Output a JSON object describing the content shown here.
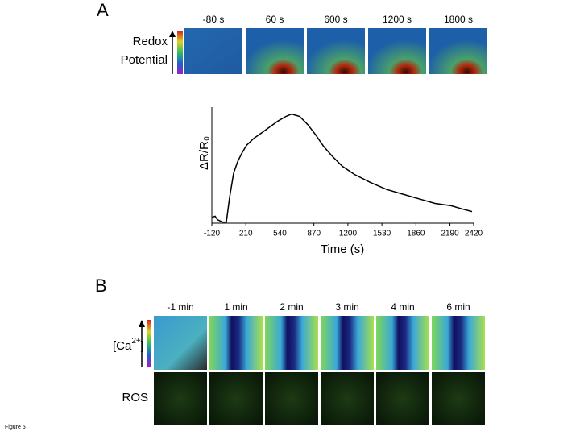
{
  "panel_a": {
    "label": "A",
    "image_times": [
      "-80 s",
      "60 s",
      "600 s",
      "1200 s",
      "1800 s"
    ],
    "colorbar_label": [
      "Redox",
      "Potential"
    ]
  },
  "chart_data": {
    "type": "line",
    "ylabel": "ΔR/R₀",
    "xlabel": "Time (s)",
    "color": "#000000",
    "x": [
      -120,
      -89,
      -65,
      -18,
      21,
      52,
      91,
      130,
      169,
      216,
      286,
      365,
      443,
      521,
      599,
      654,
      732,
      810,
      888,
      966,
      1045,
      1146,
      1263,
      1420,
      1576,
      1732,
      1889,
      2045,
      2201,
      2318,
      2404
    ],
    "values": [
      5,
      6,
      3,
      1,
      1,
      22,
      43,
      53,
      60,
      67,
      73,
      78,
      83,
      88,
      92,
      94,
      92,
      85,
      76,
      66,
      58,
      49,
      42,
      35,
      29,
      25,
      21,
      17,
      15,
      12,
      10
    ],
    "xlim": [
      -120,
      2420
    ],
    "ylim": [
      0,
      100
    ],
    "xticks": [
      -120,
      210,
      540,
      870,
      1200,
      1530,
      1860,
      2190,
      2420
    ]
  },
  "panel_b": {
    "label": "B",
    "image_times": [
      "-1 min",
      "1 min",
      "2 min",
      "3 min",
      "4 min",
      "6 min"
    ],
    "calcium_label": {
      "open": "[Ca",
      "sup": "2+",
      "close": "]"
    },
    "ros_label": "ROS"
  },
  "footer": "Figure 5"
}
